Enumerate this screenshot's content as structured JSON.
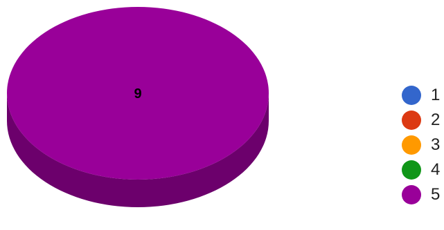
{
  "chart_data": {
    "type": "pie",
    "style": "3d",
    "categories": [
      "1",
      "2",
      "3",
      "4",
      "5"
    ],
    "values": [
      0,
      0,
      0,
      0,
      9
    ],
    "colors": [
      "#3366cc",
      "#dc3912",
      "#ff9900",
      "#109618",
      "#990099"
    ],
    "data_labels": [
      "",
      "",
      "",
      "",
      "9"
    ],
    "legend": {
      "placement": "right",
      "items": [
        {
          "label": "1",
          "color": "#3366cc"
        },
        {
          "label": "2",
          "color": "#dc3912"
        },
        {
          "label": "3",
          "color": "#ff9900"
        },
        {
          "label": "4",
          "color": "#109618"
        },
        {
          "label": "5",
          "color": "#990099"
        }
      ]
    },
    "side_color": "#6c006c"
  }
}
